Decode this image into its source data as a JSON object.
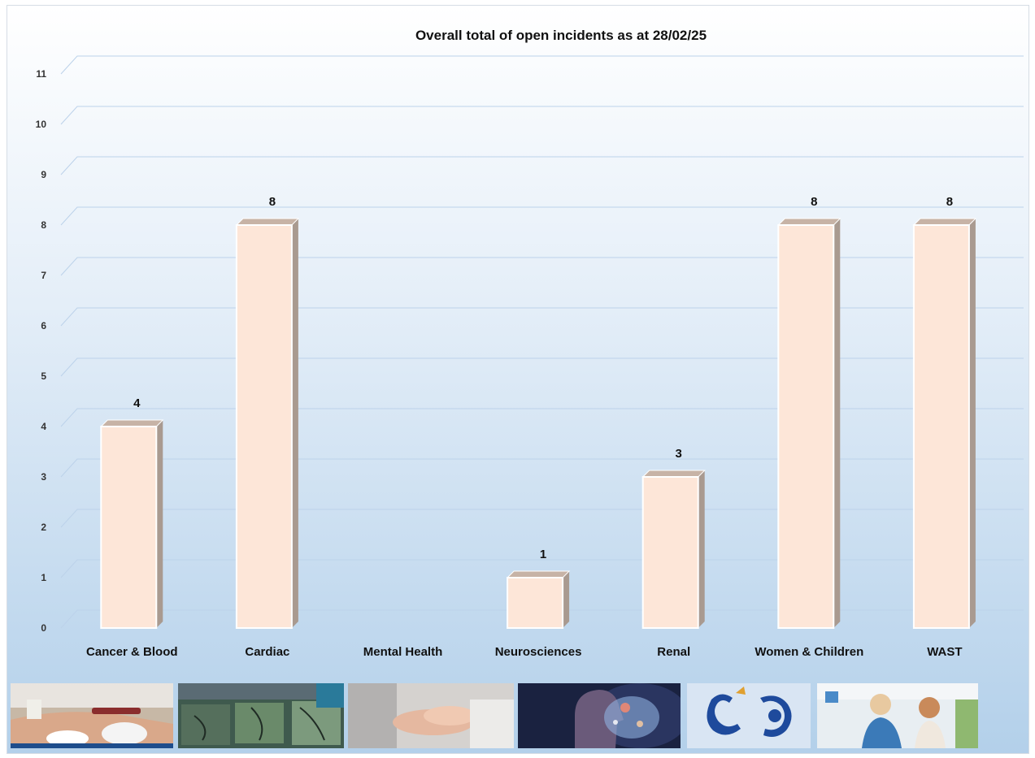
{
  "chart_data": {
    "type": "bar",
    "title": "Overall total of open incidents as at 28/02/25",
    "categories": [
      "Cancer & Blood",
      "Cardiac",
      "Mental Health",
      "Neurosciences",
      "Renal",
      "Women & Children",
      "WAST"
    ],
    "values": [
      4,
      8,
      null,
      1,
      3,
      8,
      8
    ],
    "data_labels": [
      "4",
      "8",
      "",
      "1",
      "3",
      "8",
      "8"
    ],
    "ylim": [
      0,
      11
    ],
    "yticks": [
      "0",
      "1",
      "2",
      "3",
      "4",
      "5",
      "6",
      "7",
      "8",
      "9",
      "10",
      "11"
    ],
    "grid": true,
    "style": "3d-column",
    "bar_color": "#fde6d8",
    "bar_side_color": "#a99a90",
    "gridline_color": "#bcd2ea"
  },
  "thumbnails": [
    {
      "icon": "blood-sample-photo"
    },
    {
      "icon": "angiogram-photo"
    },
    {
      "icon": "holding-hands-photo"
    },
    {
      "icon": "brain-head-photo"
    },
    {
      "icon": "wast-dragon-logo"
    },
    {
      "icon": "doctor-child-photo"
    }
  ]
}
